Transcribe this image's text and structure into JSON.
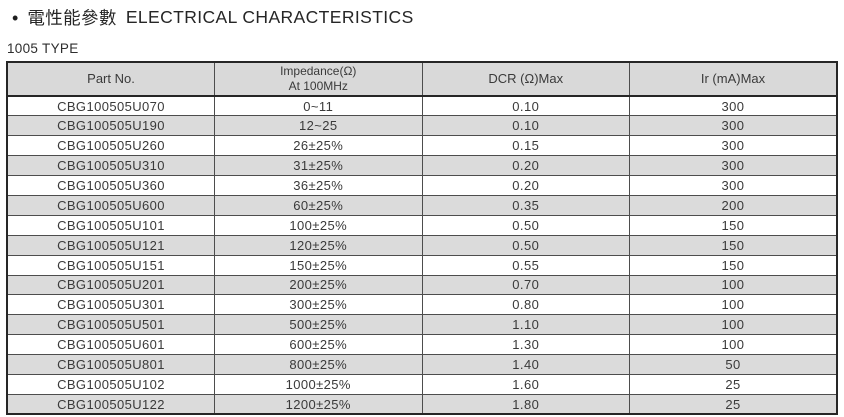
{
  "page": {
    "title_bullet": "•",
    "title_zh": "電性能參數",
    "title_en": "ELECTRICAL CHARACTERISTICS",
    "subtitle": "1005 TYPE"
  },
  "colors": {
    "header_bg": "#d9d9d9",
    "row_alt_bg": "#dbdbdb",
    "border_outer": "#262626",
    "border_inner": "#4d4d4d",
    "text": "#3a3a3a"
  },
  "table": {
    "header": {
      "part_no": "Part No.",
      "impedance_line1": "Impedance(Ω)",
      "impedance_line2": "At 100MHz",
      "dcr": "DCR (Ω)Max",
      "ir": "Ir (mA)Max"
    },
    "rows": [
      {
        "part_no": "CBG100505U070",
        "impedance": "0~11",
        "dcr_max": "0.10",
        "ir_max": "300"
      },
      {
        "part_no": "CBG100505U190",
        "impedance": "12~25",
        "dcr_max": "0.10",
        "ir_max": "300"
      },
      {
        "part_no": "CBG100505U260",
        "impedance": "26±25%",
        "dcr_max": "0.15",
        "ir_max": "300"
      },
      {
        "part_no": "CBG100505U310",
        "impedance": "31±25%",
        "dcr_max": "0.20",
        "ir_max": "300"
      },
      {
        "part_no": "CBG100505U360",
        "impedance": "36±25%",
        "dcr_max": "0.20",
        "ir_max": "300"
      },
      {
        "part_no": "CBG100505U600",
        "impedance": "60±25%",
        "dcr_max": "0.35",
        "ir_max": "200"
      },
      {
        "part_no": "CBG100505U101",
        "impedance": "100±25%",
        "dcr_max": "0.50",
        "ir_max": "150"
      },
      {
        "part_no": "CBG100505U121",
        "impedance": "120±25%",
        "dcr_max": "0.50",
        "ir_max": "150"
      },
      {
        "part_no": "CBG100505U151",
        "impedance": "150±25%",
        "dcr_max": "0.55",
        "ir_max": "150"
      },
      {
        "part_no": "CBG100505U201",
        "impedance": "200±25%",
        "dcr_max": "0.70",
        "ir_max": "100"
      },
      {
        "part_no": "CBG100505U301",
        "impedance": "300±25%",
        "dcr_max": "0.80",
        "ir_max": "100"
      },
      {
        "part_no": "CBG100505U501",
        "impedance": "500±25%",
        "dcr_max": "1.10",
        "ir_max": "100"
      },
      {
        "part_no": "CBG100505U601",
        "impedance": "600±25%",
        "dcr_max": "1.30",
        "ir_max": "100"
      },
      {
        "part_no": "CBG100505U801",
        "impedance": "800±25%",
        "dcr_max": "1.40",
        "ir_max": "50"
      },
      {
        "part_no": "CBG100505U102",
        "impedance": "1000±25%",
        "dcr_max": "1.60",
        "ir_max": "25"
      },
      {
        "part_no": "CBG100505U122",
        "impedance": "1200±25%",
        "dcr_max": "1.80",
        "ir_max": "25"
      }
    ]
  }
}
